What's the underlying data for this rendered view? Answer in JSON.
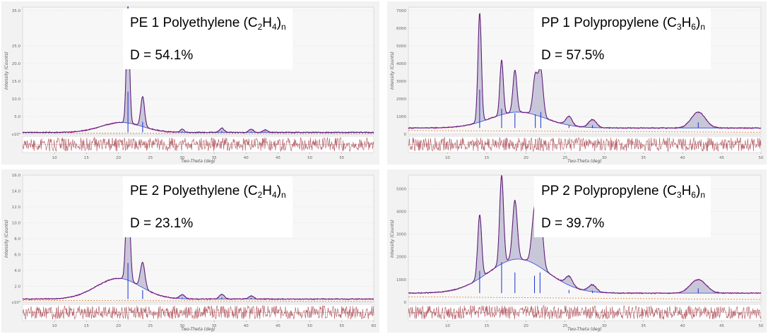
{
  "colors": {
    "observed": "#c0188a",
    "calc": "#2f2a7a",
    "background": "#2b4ad6",
    "fill": "#b8b7cf",
    "difference": "#b0525a",
    "peaks": "#1a2fd0",
    "amorphous_baseline": "#e07a2a"
  },
  "chart_data": [
    {
      "id": "pe1",
      "type": "line",
      "title_prefix": "PE 1 Polyethylene (C",
      "title_sub1": "2",
      "title_mid": "H",
      "title_sub2": "4",
      "title_close": ")",
      "title_subn": "n",
      "d_label": "D = 54.1%",
      "xlabel": "Two-Theta (deg)",
      "ylabel": "Intensity (Counts)",
      "xlim": [
        5,
        60
      ],
      "ylim": [
        0,
        36
      ],
      "xticks": [
        10,
        15,
        20,
        25,
        30,
        35,
        40,
        45,
        50,
        55
      ],
      "yticks": [
        "35.0",
        "25.0",
        "20.0",
        "15.0",
        "10.0",
        "5.0",
        "x10³"
      ],
      "ytick_vals": [
        35,
        25,
        20,
        15,
        10,
        5,
        0
      ],
      "peaks": [
        {
          "x": 21.5,
          "h": 33,
          "w": 0.25
        },
        {
          "x": 23.8,
          "h": 8.5,
          "w": 0.3
        },
        {
          "x": 30.0,
          "h": 0.9,
          "w": 0.3
        },
        {
          "x": 36.2,
          "h": 1.2,
          "w": 0.35
        },
        {
          "x": 40.8,
          "h": 0.9,
          "w": 0.35
        },
        {
          "x": 43.0,
          "h": 0.7,
          "w": 0.35
        }
      ],
      "amorphous": {
        "x": 20.5,
        "h": 2.8,
        "w": 3.2
      },
      "baseline": 0.5
    },
    {
      "id": "pp1",
      "type": "line",
      "title_prefix": "PP 1 Polypropylene (C",
      "title_sub1": "3",
      "title_mid": "H",
      "title_sub2": "6",
      "title_close": ")",
      "title_subn": "n",
      "d_label": "D = 57.5%",
      "xlabel": "Two-Theta (deg)",
      "ylabel": "Intensity (Counts)",
      "xlim": [
        5,
        50
      ],
      "ylim": [
        0,
        7200
      ],
      "xticks": [
        10,
        15,
        20,
        25,
        30,
        35,
        40,
        45,
        50
      ],
      "yticks": [
        "7000",
        "6000",
        "5000",
        "4000",
        "3000",
        "2000",
        "1000",
        "0"
      ],
      "ytick_vals": [
        7000,
        6000,
        5000,
        4000,
        3000,
        2000,
        1000,
        0
      ],
      "peaks": [
        {
          "x": 14.1,
          "h": 6200,
          "w": 0.22
        },
        {
          "x": 16.9,
          "h": 3100,
          "w": 0.22
        },
        {
          "x": 18.6,
          "h": 2400,
          "w": 0.25
        },
        {
          "x": 21.2,
          "h": 2200,
          "w": 0.3
        },
        {
          "x": 21.9,
          "h": 2600,
          "w": 0.3
        },
        {
          "x": 25.5,
          "h": 500,
          "w": 0.4
        },
        {
          "x": 28.5,
          "h": 450,
          "w": 0.5
        },
        {
          "x": 42.0,
          "h": 900,
          "w": 0.9
        }
      ],
      "amorphous": {
        "x": 19.0,
        "h": 900,
        "w": 3.5
      },
      "baseline": 350
    },
    {
      "id": "pe2",
      "type": "line",
      "title_prefix": "PE 2 Polyethylene (C",
      "title_sub1": "2",
      "title_mid": "H",
      "title_sub2": "4",
      "title_close": ")",
      "title_subn": "n",
      "d_label": "D = 23.1%",
      "xlabel": "Two-Theta (deg)",
      "ylabel": "Intensity (Counts)",
      "xlim": [
        5,
        60
      ],
      "ylim": [
        0,
        16
      ],
      "xticks": [
        10,
        15,
        20,
        25,
        30,
        35,
        40,
        45,
        50,
        55,
        60
      ],
      "yticks": [
        "16.0",
        "14.0",
        "12.0",
        "10.0",
        "8.0",
        "6.0",
        "4.0",
        "2.0",
        "x10³"
      ],
      "ytick_vals": [
        16,
        14,
        12,
        10,
        8,
        6,
        4,
        2,
        0
      ],
      "peaks": [
        {
          "x": 21.5,
          "h": 13.0,
          "w": 0.3
        },
        {
          "x": 23.8,
          "h": 3.2,
          "w": 0.35
        },
        {
          "x": 30.0,
          "h": 0.5,
          "w": 0.4
        },
        {
          "x": 36.2,
          "h": 0.6,
          "w": 0.4
        },
        {
          "x": 40.8,
          "h": 0.4,
          "w": 0.4
        }
      ],
      "amorphous": {
        "x": 20.0,
        "h": 2.6,
        "w": 3.5
      },
      "baseline": 0.4
    },
    {
      "id": "pp2",
      "type": "line",
      "title_prefix": "PP 2 Polypropylene (C",
      "title_sub1": "3",
      "title_mid": "H",
      "title_sub2": "6",
      "title_close": ")",
      "title_subn": "n",
      "d_label": "D = 39.7%",
      "xlabel": "Two-Theta (deg)",
      "ylabel": "Intensity (Counts)",
      "xlim": [
        5,
        50
      ],
      "ylim": [
        0,
        5600
      ],
      "xticks": [
        10,
        15,
        20,
        25,
        30,
        35,
        40,
        45,
        50
      ],
      "yticks": [
        "5000",
        "4000",
        "3000",
        "2000",
        "1000",
        "0"
      ],
      "ytick_vals": [
        5000,
        4000,
        3000,
        2000,
        1000,
        0
      ],
      "peaks": [
        {
          "x": 14.1,
          "h": 2800,
          "w": 0.25
        },
        {
          "x": 16.9,
          "h": 3900,
          "w": 0.25
        },
        {
          "x": 18.6,
          "h": 2600,
          "w": 0.3
        },
        {
          "x": 21.1,
          "h": 2200,
          "w": 0.35
        },
        {
          "x": 21.8,
          "h": 2600,
          "w": 0.35
        },
        {
          "x": 25.5,
          "h": 400,
          "w": 0.45
        },
        {
          "x": 28.5,
          "h": 300,
          "w": 0.5
        },
        {
          "x": 42.0,
          "h": 600,
          "w": 1.0
        }
      ],
      "amorphous": {
        "x": 19.0,
        "h": 1500,
        "w": 3.8
      },
      "baseline": 400
    }
  ]
}
